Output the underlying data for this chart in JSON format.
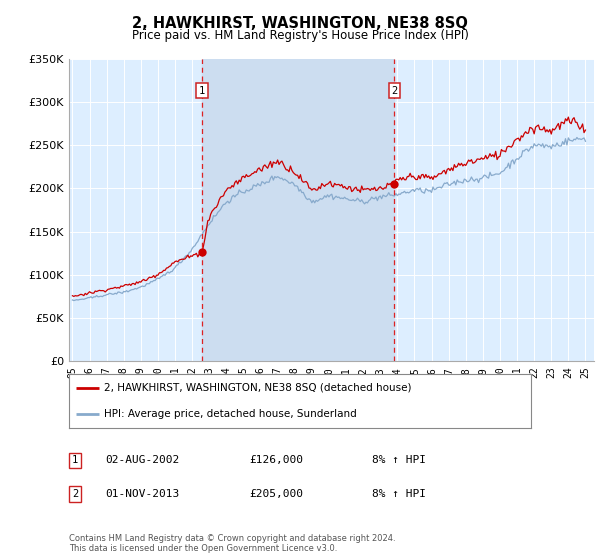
{
  "title": "2, HAWKHIRST, WASHINGTON, NE38 8SQ",
  "subtitle": "Price paid vs. HM Land Registry's House Price Index (HPI)",
  "legend_line1": "2, HAWKHIRST, WASHINGTON, NE38 8SQ (detached house)",
  "legend_line2": "HPI: Average price, detached house, Sunderland",
  "sale1_date_str": "02-AUG-2002",
  "sale1_price_str": "£126,000",
  "sale1_hpi_str": "8% ↑ HPI",
  "sale2_date_str": "01-NOV-2013",
  "sale2_price_str": "£205,000",
  "sale2_hpi_str": "8% ↑ HPI",
  "footer": "Contains HM Land Registry data © Crown copyright and database right 2024.\nThis data is licensed under the Open Government Licence v3.0.",
  "plot_bg_color": "#ddeeff",
  "fig_bg_color": "#ffffff",
  "shade_color": "#ccddf0",
  "red_line_color": "#cc0000",
  "blue_line_color": "#88aacc",
  "vline_color": "#dd2222",
  "marker_box_edgecolor": "#cc2222",
  "sale1_x": 2002.58,
  "sale1_y": 126000,
  "sale2_x": 2013.83,
  "sale2_y": 205000,
  "ylim": [
    0,
    350000
  ],
  "xlim": [
    1994.8,
    2025.5
  ],
  "yticks": [
    0,
    50000,
    100000,
    150000,
    200000,
    250000,
    300000,
    350000
  ],
  "ytick_labels": [
    "£0",
    "£50K",
    "£100K",
    "£150K",
    "£200K",
    "£250K",
    "£300K",
    "£350K"
  ],
  "xticks": [
    1995,
    1996,
    1997,
    1998,
    1999,
    2000,
    2001,
    2002,
    2003,
    2004,
    2005,
    2006,
    2007,
    2008,
    2009,
    2010,
    2011,
    2012,
    2013,
    2014,
    2015,
    2016,
    2017,
    2018,
    2019,
    2020,
    2021,
    2022,
    2023,
    2024,
    2025
  ]
}
